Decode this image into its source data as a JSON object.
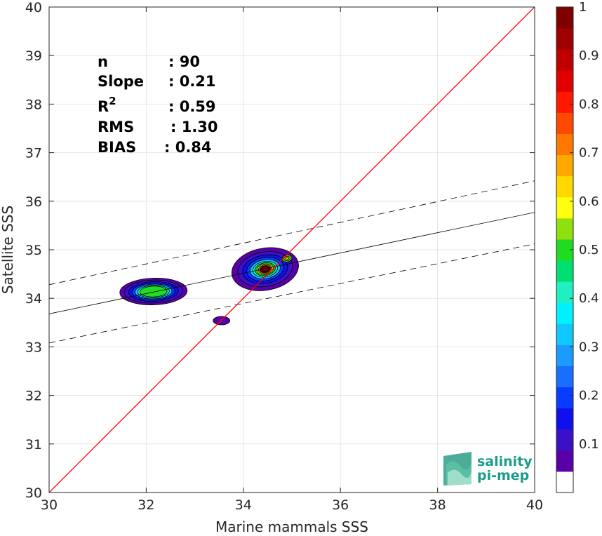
{
  "chart_data": {
    "type": "heatmap",
    "xlabel": "Marine mammals SSS",
    "ylabel": "Satellite SSS",
    "xlim": [
      30,
      40
    ],
    "ylim": [
      30,
      40
    ],
    "x_ticks": [
      "30",
      "32",
      "34",
      "36",
      "38",
      "40"
    ],
    "y_ticks": [
      "30",
      "31",
      "32",
      "33",
      "34",
      "35",
      "36",
      "37",
      "38",
      "39",
      "40"
    ],
    "grid": true,
    "stats": [
      {
        "label": "n",
        "sep": ": ",
        "value": "90"
      },
      {
        "label": "Slope",
        "sep": ": ",
        "value": "0.21"
      },
      {
        "label": "R",
        "sup": "2",
        "sep": ": ",
        "value": "0.59"
      },
      {
        "label": "RMS",
        "sep": ": ",
        "value": "1.30"
      },
      {
        "label": "BIAS",
        "sep": ": ",
        "value": "0.84"
      }
    ],
    "identity_line": {
      "x": [
        30,
        40
      ],
      "y": [
        30,
        40
      ],
      "color": "#ff0000"
    },
    "regression_line": {
      "x": [
        30,
        40
      ],
      "y": [
        33.68,
        35.77
      ],
      "color": "#000000"
    },
    "confidence_lines": [
      {
        "x": [
          30,
          40
        ],
        "y": [
          34.28,
          36.42
        ]
      },
      {
        "x": [
          30,
          40
        ],
        "y": [
          33.08,
          35.12
        ]
      }
    ],
    "density_clusters": [
      {
        "x": 32.15,
        "y": 34.14,
        "levels": [
          0.05,
          0.1,
          0.15,
          0.2,
          0.3,
          0.4,
          0.5
        ]
      },
      {
        "x": 34.45,
        "y": 34.6,
        "levels": [
          0.05,
          0.1,
          0.15,
          0.2,
          0.3,
          0.4,
          0.5,
          0.6,
          0.7,
          0.8,
          0.9,
          1.0
        ]
      },
      {
        "x": 34.9,
        "y": 34.82,
        "levels": [
          0.5,
          0.6,
          0.7
        ]
      },
      {
        "x": 33.55,
        "y": 33.54,
        "levels": [
          0.05
        ]
      }
    ],
    "colorbar": {
      "range": [
        0,
        1
      ],
      "tick_labels": [
        "0.1",
        "0.2",
        "0.3",
        "0.4",
        "0.5",
        "0.6",
        "0.7",
        "0.8",
        "0.9",
        "1"
      ],
      "tick_values": [
        0.1,
        0.2,
        0.3,
        0.4,
        0.5,
        0.6,
        0.7,
        0.8,
        0.9,
        1.0
      ],
      "colors": [
        "#ffffff",
        "#5a00a8",
        "#3a10c8",
        "#1010ee",
        "#0a3cff",
        "#1a6eff",
        "#1a9cff",
        "#10c8ff",
        "#00f0ff",
        "#20f0c0",
        "#00e070",
        "#20dc20",
        "#90e010",
        "#ffff10",
        "#ffd800",
        "#ffa800",
        "#ff7800",
        "#ff4800",
        "#ff1800",
        "#e00000",
        "#c00000",
        "#a00000",
        "#800000"
      ]
    }
  },
  "logo": {
    "line1": "salinity",
    "line2": "pi-mep"
  }
}
